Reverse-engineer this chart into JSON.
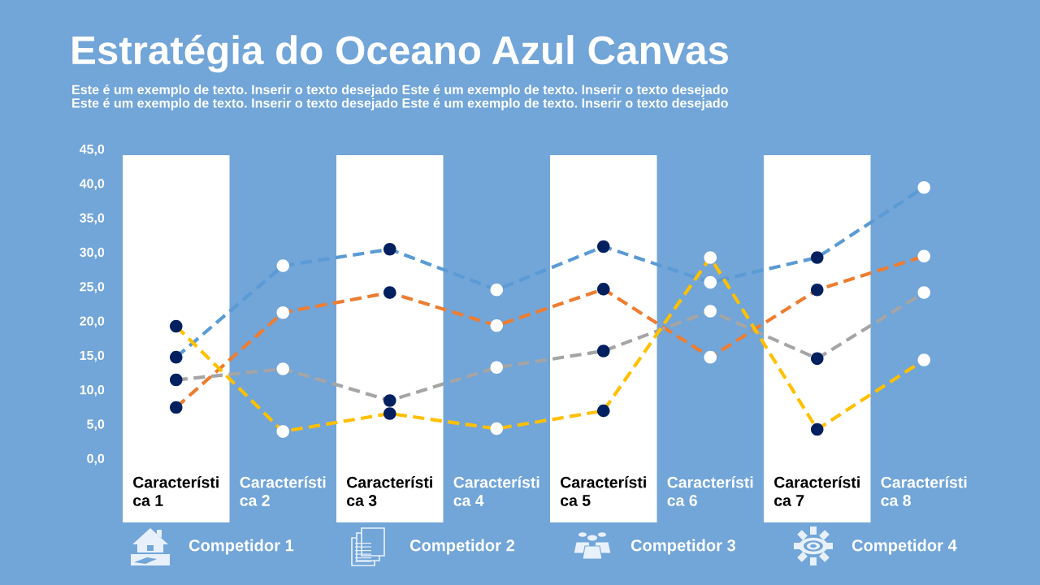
{
  "chart_data": {
    "type": "line",
    "title": "Estratégia do Oceano Azul Canvas",
    "subtitle": "Este é um exemplo de texto. Inserir o texto desejado Este é um exemplo de texto. Inserir o texto desejado\nEste é um exemplo de texto. Inserir o texto desejado Este é um exemplo de texto. Inserir o texto desejado",
    "categories": [
      "Característica 1",
      "Característica 2",
      "Característica 3",
      "Característica 4",
      "Característica 5",
      "Característica 6",
      "Característica 7",
      "Característica 8"
    ],
    "series": [
      {
        "color": "#5b9bd5",
        "colors": [
          "#002060",
          "#ffffff",
          "#002060",
          "#ffffff",
          "#002060",
          "#ffffff",
          "#002060",
          "#ffffff"
        ],
        "values": [
          14.7,
          28.0,
          30.4,
          24.5,
          30.8,
          25.6,
          29.2,
          39.4
        ]
      },
      {
        "color": "#ed7d31",
        "colors": [
          "#002060",
          "#ffffff",
          "#002060",
          "#ffffff",
          "#002060",
          "#ffffff",
          "#002060",
          "#ffffff"
        ],
        "values": [
          7.4,
          21.2,
          24.1,
          19.3,
          24.6,
          14.7,
          24.5,
          29.4
        ]
      },
      {
        "color": "#a5a5a5",
        "colors": [
          "#002060",
          "#ffffff",
          "#002060",
          "#ffffff",
          "#002060",
          "#ffffff",
          "#002060",
          "#ffffff"
        ],
        "values": [
          11.4,
          13.0,
          8.4,
          13.2,
          15.6,
          21.4,
          14.5,
          24.1
        ]
      },
      {
        "color": "#ffc000",
        "colors": [
          "#002060",
          "#ffffff",
          "#002060",
          "#ffffff",
          "#002060",
          "#ffffff",
          "#002060",
          "#ffffff"
        ],
        "values": [
          19.2,
          3.9,
          6.5,
          4.3,
          6.9,
          29.2,
          4.2,
          14.3
        ]
      }
    ],
    "ylim": [
      0,
      45
    ],
    "yticks": [
      {
        "value": 0,
        "label": "0,0"
      },
      {
        "value": 5,
        "label": "5,0"
      },
      {
        "value": 10,
        "label": "10,0"
      },
      {
        "value": 15,
        "label": "15,0"
      },
      {
        "value": 20,
        "label": "20,0"
      },
      {
        "value": 25,
        "label": "25,0"
      },
      {
        "value": 30,
        "label": "30,0"
      },
      {
        "value": 35,
        "label": "35,0"
      },
      {
        "value": 40,
        "label": "40,0"
      },
      {
        "value": 45,
        "label": "45,0"
      }
    ],
    "bands": [
      {
        "axis": "x",
        "from": "Característica 1",
        "to": "Característica 1",
        "color": "#ffffff"
      },
      {
        "axis": "x",
        "from": "Característica 3",
        "to": "Característica 3",
        "color": "#ffffff"
      },
      {
        "axis": "x",
        "from": "Característica 5",
        "to": "Característica 5",
        "color": "#ffffff"
      },
      {
        "axis": "x",
        "from": "Característica 7",
        "to": "Característica 7",
        "color": "#ffffff"
      }
    ],
    "annotations": [
      "Competidor 1",
      "Competidor 2",
      "Competidor 3",
      "Competidor 4"
    ],
    "marker": "circle",
    "line_style": "dashed",
    "grid": false,
    "legend": false
  }
}
